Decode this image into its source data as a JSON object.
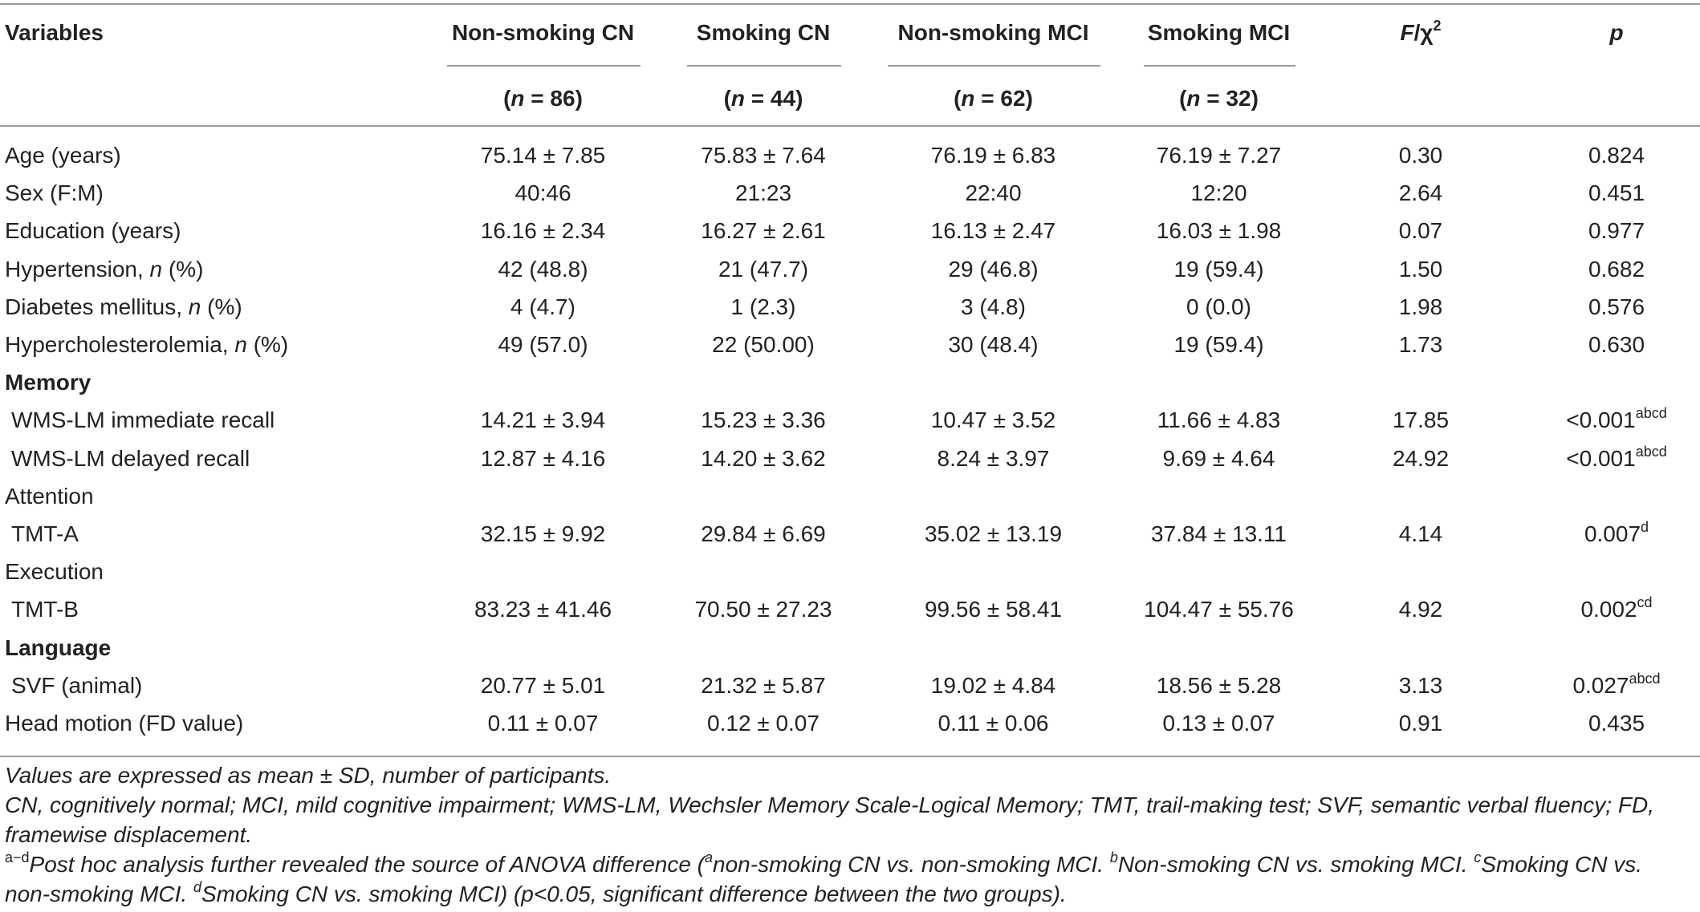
{
  "header": {
    "variables": "Variables",
    "groups": [
      {
        "name": "Non-smoking CN",
        "n_prefix": "(",
        "n_italic": "n",
        "n_suffix": " = 86)"
      },
      {
        "name": "Smoking CN",
        "n_prefix": "(",
        "n_italic": "n",
        "n_suffix": " = 44)"
      },
      {
        "name": "Non-smoking MCI",
        "n_prefix": "(",
        "n_italic": "n",
        "n_suffix": " = 62)"
      },
      {
        "name": "Smoking MCI",
        "n_prefix": "(",
        "n_italic": "n",
        "n_suffix": " = 32)"
      }
    ],
    "stat_f": "F",
    "stat_sep": "/χ",
    "stat_sup": "2",
    "p": "p"
  },
  "rows": [
    {
      "label": "Age (years)",
      "values": [
        "75.14 ± 7.85",
        "75.83 ± 7.64",
        "76.19 ± 6.83",
        "76.19 ± 7.27"
      ],
      "stat": "0.30",
      "p": "0.824",
      "p_sup": ""
    },
    {
      "label": "Sex (F:M)",
      "values": [
        "40:46",
        "21:23",
        "22:40",
        "12:20"
      ],
      "stat": "2.64",
      "p": "0.451",
      "p_sup": ""
    },
    {
      "label": "Education (years)",
      "values": [
        "16.16 ± 2.34",
        "16.27 ± 2.61",
        "16.13 ± 2.47",
        "16.03 ± 1.98"
      ],
      "stat": "0.07",
      "p": "0.977",
      "p_sup": ""
    },
    {
      "label_pre": "Hypertension, ",
      "label_ital": "n",
      "label_post": " (%)",
      "values": [
        "42 (48.8)",
        "21 (47.7)",
        "29 (46.8)",
        "19 (59.4)"
      ],
      "stat": "1.50",
      "p": "0.682",
      "p_sup": ""
    },
    {
      "label_pre": "Diabetes mellitus, ",
      "label_ital": "n",
      "label_post": " (%)",
      "values": [
        "4 (4.7)",
        "1 (2.3)",
        "3 (4.8)",
        "0 (0.0)"
      ],
      "stat": "1.98",
      "p": "0.576",
      "p_sup": ""
    },
    {
      "label_pre": "Hypercholesterolemia, ",
      "label_ital": "n",
      "label_post": " (%)",
      "values": [
        "49 (57.0)",
        "22 (50.00)",
        "30 (48.4)",
        "19 (59.4)"
      ],
      "stat": "1.73",
      "p": "0.630",
      "p_sup": ""
    },
    {
      "section": "Memory",
      "bold": true
    },
    {
      "label": "WMS-LM immediate recall",
      "indent": true,
      "values": [
        "14.21 ± 3.94",
        "15.23 ± 3.36",
        "10.47 ± 3.52",
        "11.66 ± 4.83"
      ],
      "stat": "17.85",
      "p": "<0.001",
      "p_sup": "abcd"
    },
    {
      "label": "WMS-LM delayed recall",
      "indent": true,
      "values": [
        "12.87 ± 4.16",
        "14.20 ± 3.62",
        "8.24 ± 3.97",
        "9.69 ± 4.64"
      ],
      "stat": "24.92",
      "p": "<0.001",
      "p_sup": "abcd"
    },
    {
      "section": "Attention",
      "bold": false
    },
    {
      "label": "TMT-A",
      "indent": true,
      "values": [
        "32.15 ± 9.92",
        "29.84 ± 6.69",
        "35.02 ± 13.19",
        "37.84 ± 13.11"
      ],
      "stat": "4.14",
      "p": "0.007",
      "p_sup": "d"
    },
    {
      "section": "Execution",
      "bold": false
    },
    {
      "label": "TMT-B",
      "indent": true,
      "values": [
        "83.23 ± 41.46",
        "70.50 ± 27.23",
        "99.56 ± 58.41",
        "104.47 ± 55.76"
      ],
      "stat": "4.92",
      "p": "0.002",
      "p_sup": "cd"
    },
    {
      "section": "Language",
      "bold": true
    },
    {
      "label": "SVF (animal)",
      "indent": true,
      "values": [
        "20.77 ± 5.01",
        "21.32 ± 5.87",
        "19.02 ± 4.84",
        "18.56 ± 5.28"
      ],
      "stat": "3.13",
      "p": "0.027",
      "p_sup": "abcd"
    },
    {
      "label": "Head motion (FD value)",
      "values": [
        "0.11 ± 0.07",
        "0.12 ± 0.07",
        "0.11 ± 0.06",
        "0.13 ± 0.07"
      ],
      "stat": "0.91",
      "p": "0.435",
      "p_sup": ""
    }
  ],
  "notes": {
    "line1": "Values are expressed as mean ± SD, number of participants.",
    "line2": "CN, cognitively normal; MCI, mild cognitive impairment; WMS-LM, Wechsler Memory Scale-Logical Memory; TMT, trail-making test; SVF, semantic verbal fluency; FD,",
    "line3": "framewise displacement.",
    "line4_sup_ad": "a−d",
    "line4_a": "Post hoc analysis further revealed the source of ANOVA difference (",
    "line4_sup_a": "a",
    "line4_b": "non-smoking CN vs. non-smoking MCI. ",
    "line4_sup_b": "b",
    "line4_c": "Non-smoking CN vs. smoking MCI. ",
    "line4_sup_c": "c",
    "line4_d": "Smoking CN vs.",
    "line5_a": "non-smoking MCI. ",
    "line5_sup_d": "d",
    "line5_b": "Smoking CN vs. smoking MCI) (p<0.05, significant difference between the two groups)."
  }
}
